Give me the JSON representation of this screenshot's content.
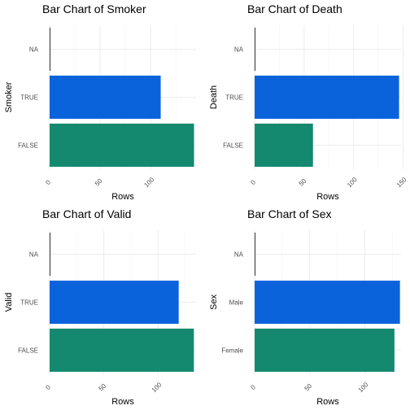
{
  "colors": {
    "false_bar": "#14896f",
    "true_bar": "#0b63dc",
    "na_bar": "#333333",
    "grid": "#ebebeb"
  },
  "chart_data": [
    {
      "type": "bar",
      "orientation": "horizontal",
      "title": "Bar Chart of Smoker",
      "xlabel": "Rows",
      "ylabel": "Smoker",
      "categories": [
        "FALSE",
        "TRUE",
        "NA"
      ],
      "values": [
        143,
        110,
        0
      ],
      "xticks": [
        0,
        50,
        100
      ],
      "xlim": [
        0,
        145
      ],
      "grid": true
    },
    {
      "type": "bar",
      "orientation": "horizontal",
      "title": "Bar Chart of Death",
      "xlabel": "Rows",
      "ylabel": "Death",
      "categories": [
        "FALSE",
        "TRUE",
        "NA"
      ],
      "values": [
        59,
        146,
        0
      ],
      "xticks": [
        0,
        50,
        100,
        150
      ],
      "xlim": [
        0,
        148
      ],
      "grid": true
    },
    {
      "type": "bar",
      "orientation": "horizontal",
      "title": "Bar Chart of Valid",
      "xlabel": "Rows",
      "ylabel": "Valid",
      "categories": [
        "FALSE",
        "TRUE",
        "NA"
      ],
      "values": [
        133,
        119,
        0
      ],
      "xticks": [
        0,
        50,
        100
      ],
      "xlim": [
        0,
        135
      ],
      "grid": true
    },
    {
      "type": "bar",
      "orientation": "horizontal",
      "title": "Bar Chart of Sex",
      "xlabel": "Rows",
      "ylabel": "Sex",
      "categories": [
        "Female",
        "Male",
        "NA"
      ],
      "values": [
        127,
        132,
        0
      ],
      "xticks": [
        0,
        50,
        100
      ],
      "xlim": [
        0,
        133
      ],
      "grid": true
    }
  ]
}
